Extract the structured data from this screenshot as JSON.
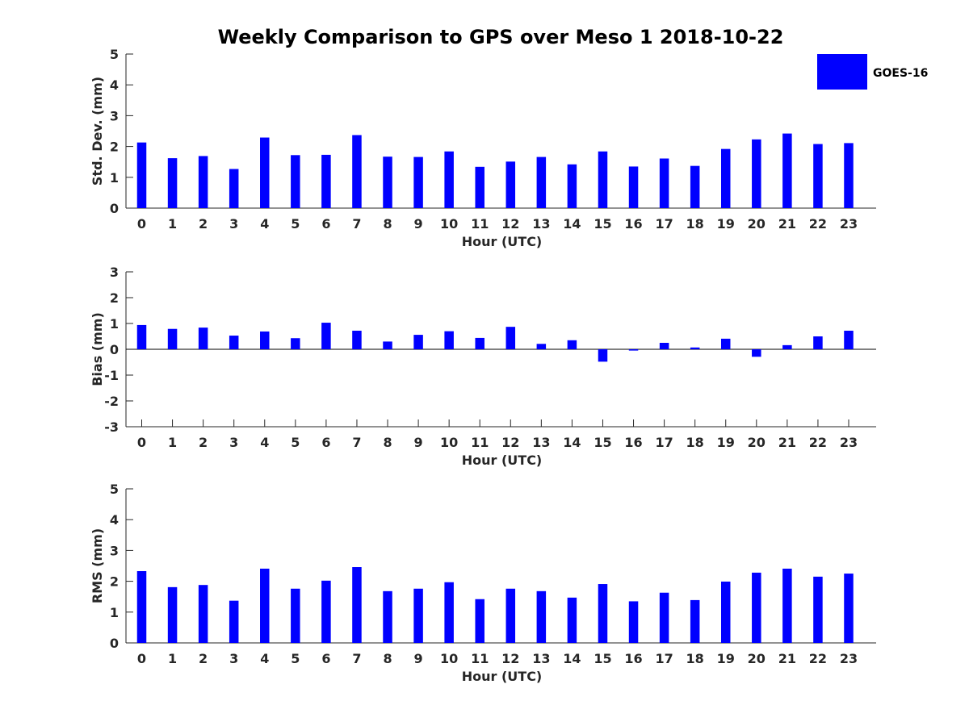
{
  "title": "Weekly Comparison to GPS over Meso 1 2018-10-22",
  "bar_color": "#0000ff",
  "legend": {
    "label": "GOES-16"
  },
  "chart_data": [
    {
      "type": "bar",
      "title": "Weekly Comparison to GPS over Meso 1 2018-10-22",
      "xlabel": "Hour (UTC)",
      "ylabel": "Std. Dev. (mm)",
      "ylim": [
        0,
        5
      ],
      "yticks": [
        0,
        1,
        2,
        3,
        4,
        5
      ],
      "categories": [
        "0",
        "1",
        "2",
        "3",
        "4",
        "5",
        "6",
        "7",
        "8",
        "9",
        "10",
        "11",
        "12",
        "13",
        "14",
        "15",
        "16",
        "17",
        "18",
        "19",
        "20",
        "21",
        "22",
        "23"
      ],
      "series": [
        {
          "name": "GOES-16",
          "values": [
            2.13,
            1.62,
            1.69,
            1.27,
            2.29,
            1.72,
            1.73,
            2.37,
            1.67,
            1.66,
            1.84,
            1.34,
            1.51,
            1.66,
            1.42,
            1.84,
            1.35,
            1.61,
            1.37,
            1.92,
            2.23,
            2.42,
            2.08,
            2.11
          ]
        }
      ]
    },
    {
      "type": "bar",
      "xlabel": "Hour (UTC)",
      "ylabel": "Bias (mm)",
      "ylim": [
        -3,
        3
      ],
      "yticks": [
        -3,
        -2,
        -1,
        0,
        1,
        2,
        3
      ],
      "categories": [
        "0",
        "1",
        "2",
        "3",
        "4",
        "5",
        "6",
        "7",
        "8",
        "9",
        "10",
        "11",
        "12",
        "13",
        "14",
        "15",
        "16",
        "17",
        "18",
        "19",
        "20",
        "21",
        "22",
        "23"
      ],
      "series": [
        {
          "name": "GOES-16",
          "values": [
            0.94,
            0.79,
            0.84,
            0.53,
            0.69,
            0.43,
            1.03,
            0.72,
            0.3,
            0.56,
            0.7,
            0.44,
            0.87,
            0.21,
            0.35,
            -0.48,
            -0.05,
            0.25,
            0.07,
            0.41,
            -0.29,
            0.16,
            0.5,
            0.72
          ]
        }
      ]
    },
    {
      "type": "bar",
      "xlabel": "Hour (UTC)",
      "ylabel": "RMS (mm)",
      "ylim": [
        0,
        5
      ],
      "yticks": [
        0,
        1,
        2,
        3,
        4,
        5
      ],
      "categories": [
        "0",
        "1",
        "2",
        "3",
        "4",
        "5",
        "6",
        "7",
        "8",
        "9",
        "10",
        "11",
        "12",
        "13",
        "14",
        "15",
        "16",
        "17",
        "18",
        "19",
        "20",
        "21",
        "22",
        "23"
      ],
      "series": [
        {
          "name": "GOES-16",
          "values": [
            2.33,
            1.81,
            1.88,
            1.37,
            2.41,
            1.76,
            2.02,
            2.46,
            1.68,
            1.76,
            1.97,
            1.42,
            1.76,
            1.68,
            1.47,
            1.91,
            1.35,
            1.63,
            1.39,
            1.99,
            2.28,
            2.41,
            2.15,
            2.25
          ]
        }
      ]
    }
  ]
}
